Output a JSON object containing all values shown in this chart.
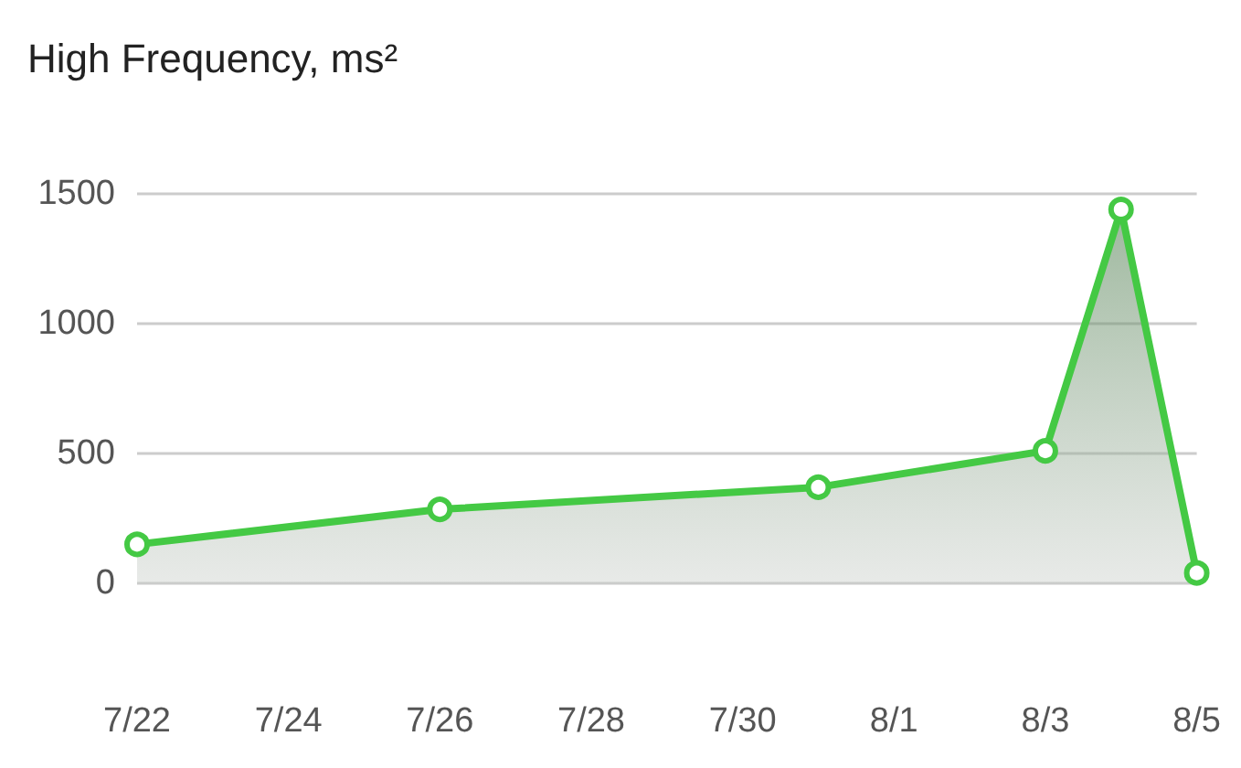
{
  "chart_data": {
    "type": "area",
    "title": "High Frequency, ms²",
    "x": [
      "--07-22",
      "--07-26",
      "--07-31",
      "--08-03",
      "--08-04",
      "--08-05"
    ],
    "series": [
      {
        "color": "#44c944",
        "values": [
          150,
          285,
          370,
          510,
          1440,
          40
        ]
      }
    ],
    "xlim": [
      "--07-22",
      "--08-05"
    ],
    "xticks": [
      {
        "value": "--07-22",
        "label": "7/22"
      },
      {
        "value": "--07-24",
        "label": "7/24"
      },
      {
        "value": "--07-26",
        "label": "7/26"
      },
      {
        "value": "--07-28",
        "label": "7/28"
      },
      {
        "value": "--07-30",
        "label": "7/30"
      },
      {
        "value": "--08-01",
        "label": "8/1"
      },
      {
        "value": "--08-03",
        "label": "8/3"
      },
      {
        "value": "--08-05",
        "label": "8/5"
      }
    ],
    "ylim": [
      0,
      1500
    ],
    "yticks": [
      0,
      500,
      1000,
      1500
    ],
    "grid": "y",
    "marker": "circle",
    "line_style": "solid"
  }
}
